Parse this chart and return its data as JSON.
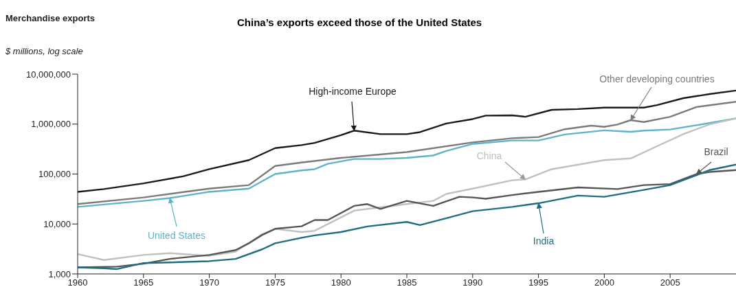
{
  "chart_data": {
    "type": "line",
    "title": "China’s exports exceed those of the United States",
    "subtitle": "Merchandise exports",
    "ylabel": "$ millions, log scale",
    "log": "y",
    "grid": false,
    "legend": false,
    "marker": "none",
    "line_style": "solid",
    "xlim": [
      1960,
      2010
    ],
    "xticks": [
      1960,
      1965,
      1970,
      1975,
      1980,
      1985,
      1990,
      1995,
      2000,
      2005
    ],
    "ylim": [
      1000,
      10000000
    ],
    "yticks": [
      {
        "value": 1000,
        "label": "1,000"
      },
      {
        "value": 10000,
        "label": "10,000"
      },
      {
        "value": 100000,
        "label": "100,000"
      },
      {
        "value": 1000000,
        "label": "1,000,000"
      },
      {
        "value": 10000000,
        "label": "10,000,000"
      }
    ],
    "series": [
      {
        "name": "High-income Europe",
        "color": "#1a1a1a",
        "x": [
          1960,
          1962,
          1965,
          1968,
          1970,
          1973,
          1975,
          1977,
          1978,
          1980,
          1981,
          1983,
          1985,
          1986,
          1988,
          1990,
          1991,
          1993,
          1994,
          1996,
          1998,
          2000,
          2003,
          2004,
          2006,
          2008,
          2010
        ],
        "values": [
          44000,
          50000,
          65000,
          90000,
          125000,
          190000,
          330000,
          380000,
          420000,
          600000,
          740000,
          630000,
          630000,
          690000,
          1030000,
          1260000,
          1480000,
          1500000,
          1400000,
          1930000,
          2000000,
          2140000,
          2140000,
          2400000,
          3300000,
          4000000,
          4700000
        ]
      },
      {
        "name": "Other developing countries",
        "color": "#7a7a7a",
        "x": [
          1960,
          1965,
          1970,
          1973,
          1975,
          1977,
          1980,
          1985,
          1990,
          1993,
          1995,
          1997,
          1999,
          2000,
          2001,
          2002,
          2003,
          2005,
          2007,
          2010
        ],
        "values": [
          25000,
          34000,
          51000,
          60000,
          145000,
          170000,
          210000,
          275000,
          430000,
          520000,
          550000,
          790000,
          930000,
          880000,
          980000,
          1200000,
          1100000,
          1400000,
          2200000,
          2800000
        ]
      },
      {
        "name": "United States",
        "color": "#5fb3c9",
        "x": [
          1960,
          1965,
          1967,
          1970,
          1973,
          1975,
          1977,
          1978,
          1979,
          1981,
          1983,
          1985,
          1987,
          1988,
          1990,
          1993,
          1995,
          1997,
          2000,
          2002,
          2003,
          2005,
          2007,
          2010
        ],
        "values": [
          22000,
          29000,
          33000,
          44000,
          51000,
          100000,
          118000,
          125000,
          160000,
          200000,
          200000,
          210000,
          235000,
          290000,
          400000,
          470000,
          470000,
          620000,
          750000,
          700000,
          740000,
          780000,
          950000,
          1300000
        ]
      },
      {
        "name": "China",
        "color": "#c0c0c0",
        "x": [
          1960,
          1962,
          1965,
          1967,
          1970,
          1972,
          1974,
          1975,
          1977,
          1978,
          1981,
          1985,
          1987,
          1988,
          1990,
          1993,
          1994,
          1996,
          2000,
          2002,
          2004,
          2006,
          2008,
          2010
        ],
        "values": [
          2500,
          1900,
          2400,
          2600,
          2300,
          2800,
          6200,
          8000,
          6900,
          7300,
          18500,
          25000,
          29000,
          40000,
          51000,
          75000,
          78000,
          125000,
          190000,
          205000,
          360000,
          630000,
          990000,
          1300000
        ]
      },
      {
        "name": "Brazil",
        "color": "#555555",
        "x": [
          1960,
          1963,
          1965,
          1967,
          1970,
          1972,
          1973,
          1974,
          1975,
          1977,
          1978,
          1979,
          1981,
          1982,
          1983,
          1985,
          1987,
          1989,
          1990,
          1991,
          1993,
          1995,
          1998,
          2001,
          2003,
          2005,
          2007,
          2008,
          2010
        ],
        "values": [
          1350,
          1400,
          1600,
          2000,
          2400,
          3000,
          4100,
          6000,
          8000,
          9000,
          12000,
          12000,
          23000,
          25000,
          20000,
          29000,
          23000,
          35000,
          34000,
          32000,
          38000,
          44000,
          54000,
          50000,
          60000,
          63000,
          100000,
          110000,
          120000
        ]
      },
      {
        "name": "India",
        "color": "#1e6e80",
        "x": [
          1960,
          1962,
          1963,
          1965,
          1967,
          1970,
          1972,
          1974,
          1975,
          1977,
          1978,
          1980,
          1982,
          1985,
          1986,
          1988,
          1990,
          1993,
          1995,
          1998,
          2000,
          2003,
          2005,
          2007,
          2008,
          2010
        ],
        "values": [
          1350,
          1300,
          1250,
          1650,
          1700,
          1800,
          2000,
          3100,
          4100,
          5300,
          5900,
          6900,
          8900,
          11000,
          9500,
          13000,
          18000,
          22000,
          26000,
          37000,
          35000,
          48000,
          60000,
          95000,
          120000,
          155000
        ]
      }
    ]
  }
}
